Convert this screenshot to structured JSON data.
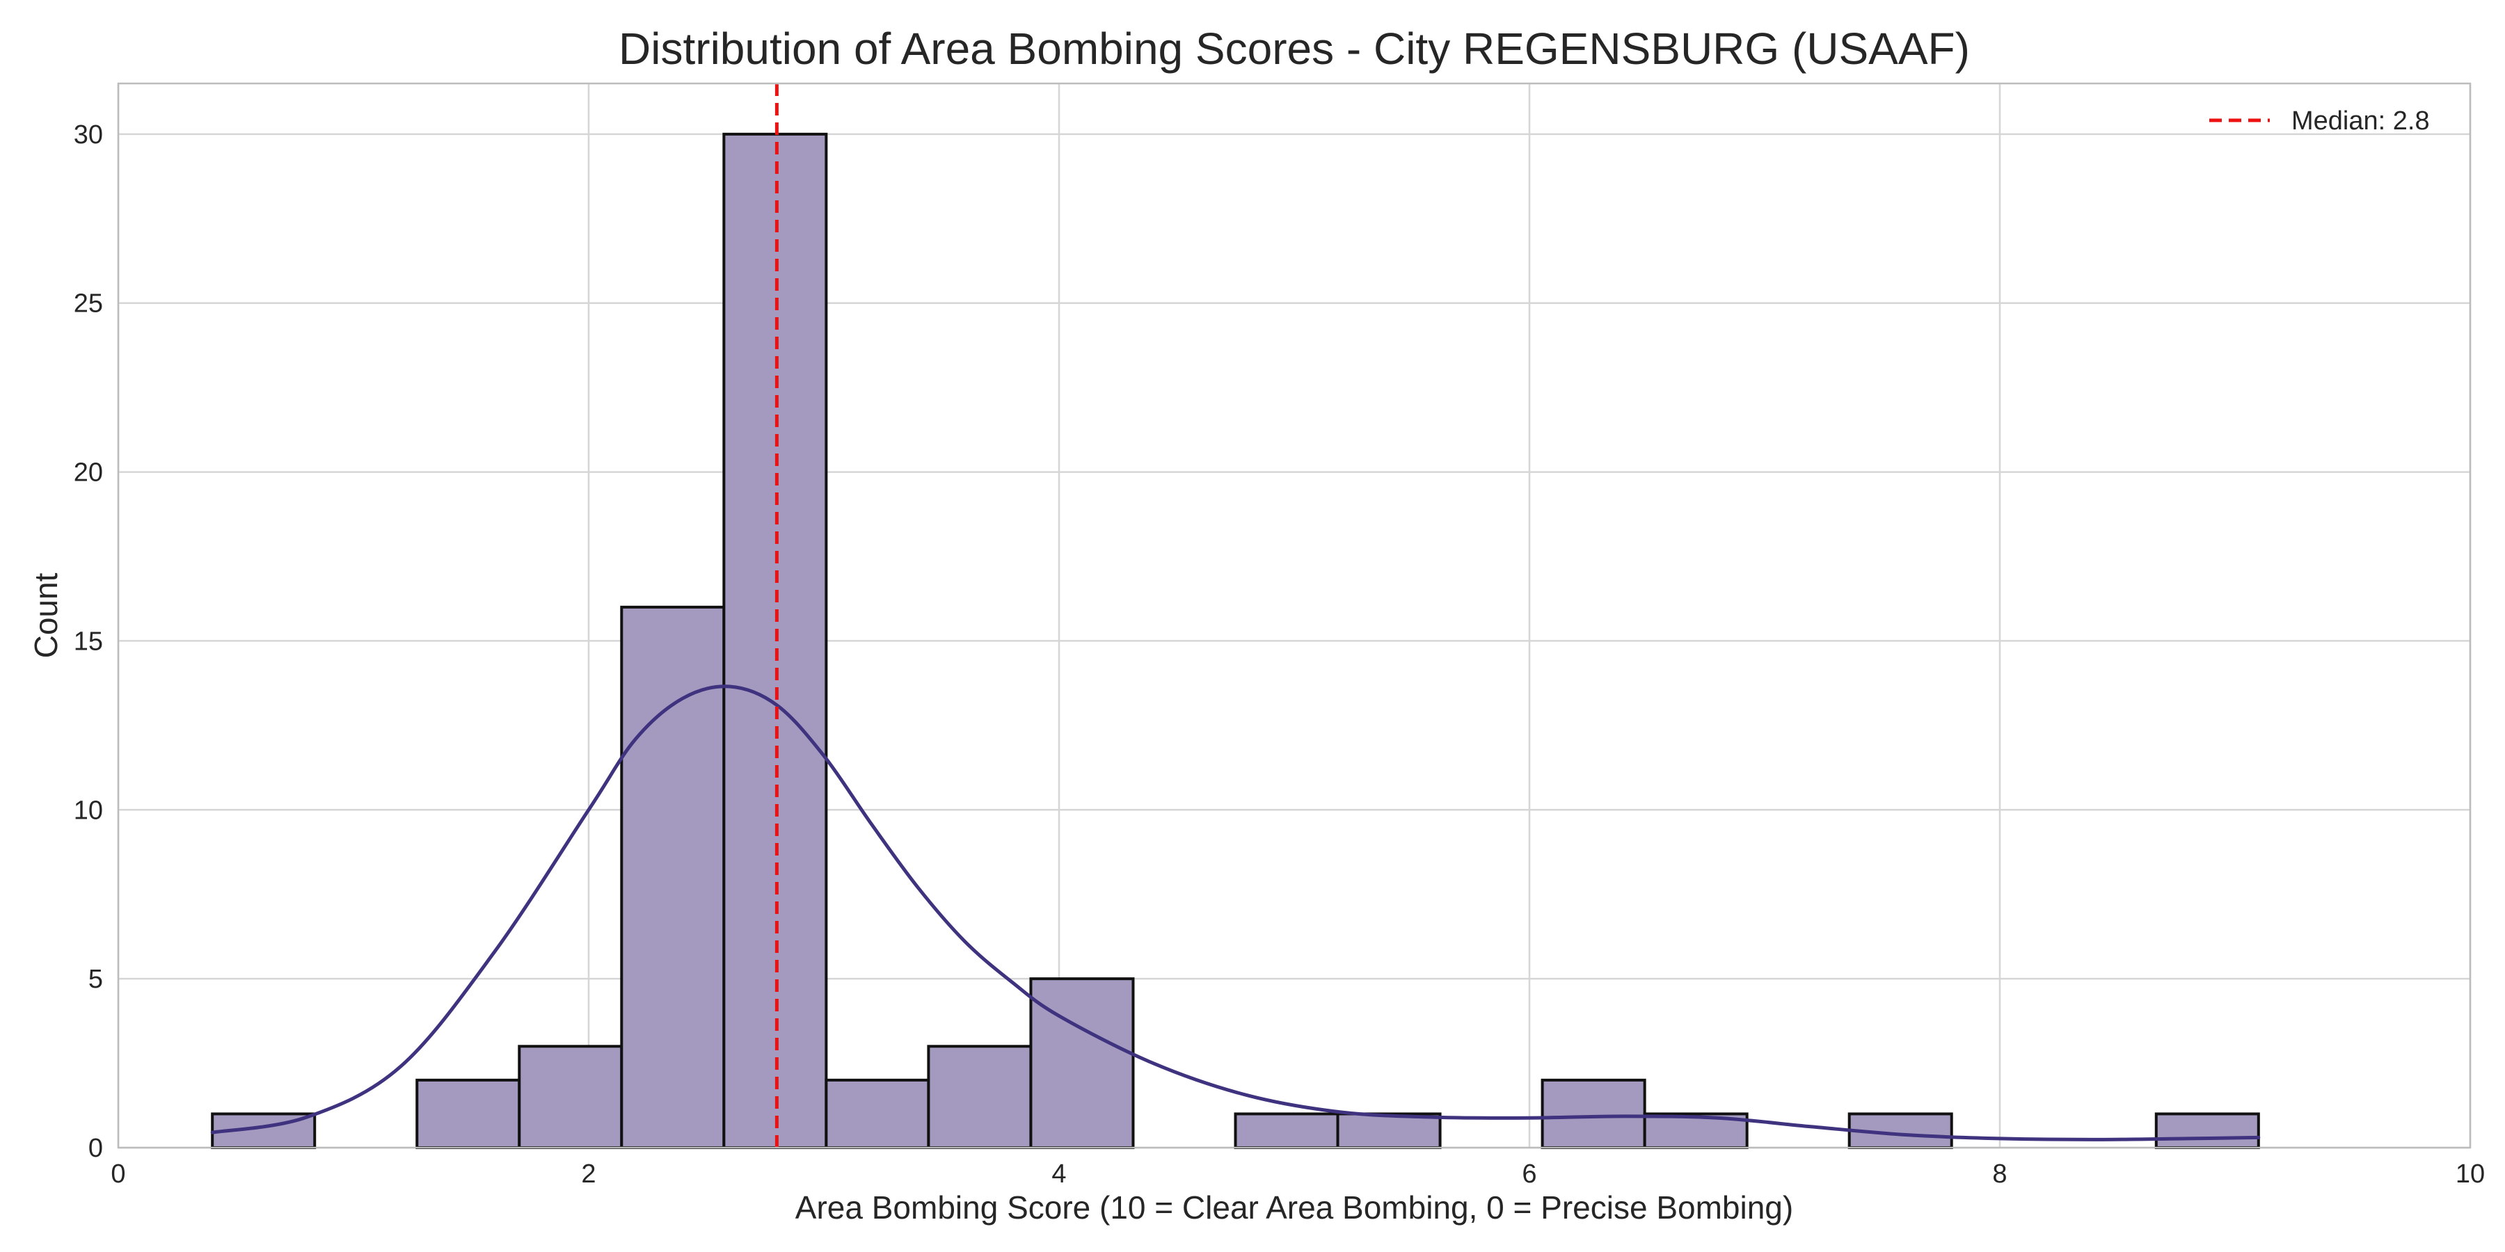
{
  "chart_data": {
    "type": "bar",
    "title": "Distribution of Area Bombing Scores - City REGENSBURG (USAAF)",
    "xlabel": "Area Bombing Score (10 = Clear Area Bombing, 0 = Precise Bombing)",
    "ylabel": "Count",
    "xlim": [
      0,
      10
    ],
    "ylim": [
      0,
      31.5
    ],
    "x_ticks": [
      0,
      2,
      4,
      6,
      8,
      10
    ],
    "y_ticks": [
      0,
      5,
      10,
      15,
      20,
      25,
      30
    ],
    "grid": true,
    "legend_position": "top-right",
    "bin_edges": [
      0.4,
      0.835,
      1.27,
      1.705,
      2.14,
      2.575,
      3.01,
      3.445,
      3.88,
      4.315,
      4.75,
      5.185,
      5.62,
      6.055,
      6.49,
      6.925,
      7.36,
      7.795,
      8.23,
      8.665,
      9.1
    ],
    "counts": [
      1,
      0,
      2,
      3,
      16,
      30,
      2,
      3,
      5,
      0,
      1,
      1,
      0,
      2,
      1,
      0,
      1,
      0,
      0,
      1
    ],
    "kde": {
      "x": [
        0.4,
        0.8,
        1.2,
        1.6,
        2.0,
        2.2,
        2.4,
        2.6,
        2.8,
        3.0,
        3.2,
        3.4,
        3.6,
        3.8,
        4.0,
        4.4,
        4.8,
        5.2,
        5.6,
        6.0,
        6.4,
        6.8,
        7.2,
        7.6,
        8.0,
        8.4,
        8.8,
        9.1
      ],
      "y": [
        0.45,
        0.9,
        2.4,
        5.8,
        10.0,
        12.1,
        13.3,
        13.65,
        13.1,
        11.6,
        9.6,
        7.7,
        6.1,
        4.9,
        3.9,
        2.5,
        1.55,
        1.05,
        0.9,
        0.88,
        0.93,
        0.88,
        0.62,
        0.38,
        0.27,
        0.24,
        0.27,
        0.3
      ]
    },
    "median": {
      "value": 2.8,
      "label": "Median: 2.8"
    },
    "colors": {
      "bar_fill": "#a49abf",
      "bar_edge": "#111111",
      "kde_line": "#3f327e",
      "median_line": "#ee1111",
      "grid": "#d6d6d6",
      "axes": "#bcbcbc"
    }
  }
}
